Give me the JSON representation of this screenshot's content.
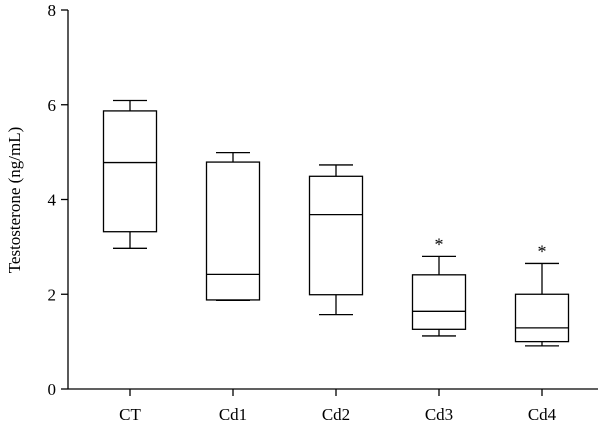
{
  "chart_data": {
    "type": "box",
    "ylabel": "Testosterone (ng/mL)",
    "xlabel": "",
    "ylim": [
      0,
      8
    ],
    "yticks": [
      0,
      2,
      4,
      6,
      8
    ],
    "categories": [
      "CT",
      "Cd1",
      "Cd2",
      "Cd3",
      "Cd4"
    ],
    "boxes": [
      {
        "category": "CT",
        "min": 2.97,
        "q1": 3.32,
        "median": 4.78,
        "q3": 5.87,
        "max": 6.09,
        "annotation": ""
      },
      {
        "category": "Cd1",
        "min": 1.87,
        "q1": 1.88,
        "median": 2.42,
        "q3": 4.79,
        "max": 4.99,
        "annotation": ""
      },
      {
        "category": "Cd2",
        "min": 1.57,
        "q1": 1.99,
        "median": 3.68,
        "q3": 4.49,
        "max": 4.73,
        "annotation": ""
      },
      {
        "category": "Cd3",
        "min": 1.12,
        "q1": 1.26,
        "median": 1.64,
        "q3": 2.41,
        "max": 2.8,
        "annotation": "*"
      },
      {
        "category": "Cd4",
        "min": 0.91,
        "q1": 1.0,
        "median": 1.29,
        "q3": 2.0,
        "max": 2.65,
        "annotation": "*"
      }
    ],
    "grid": false,
    "legend": "none"
  }
}
